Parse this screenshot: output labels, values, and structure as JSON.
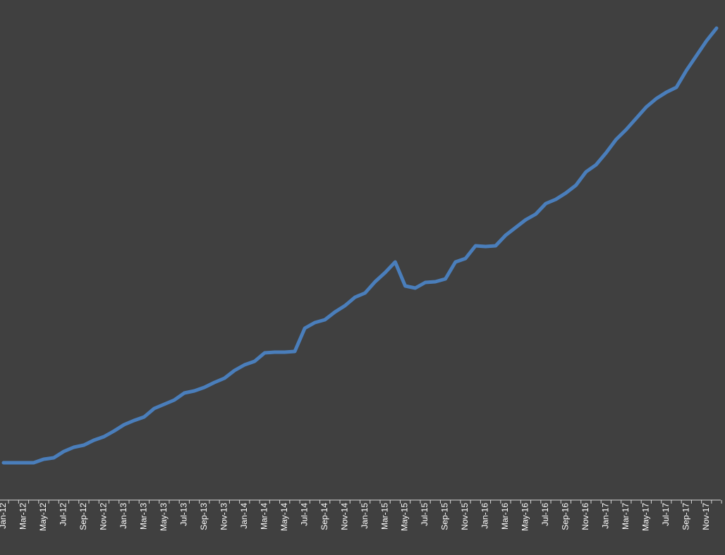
{
  "chart_data": {
    "type": "line",
    "categories": [
      "Jan-12",
      null,
      "Mar-12",
      null,
      "May-12",
      null,
      "Jul-12",
      null,
      "Sep-12",
      null,
      "Nov-12",
      null,
      "Jan-13",
      null,
      "Mar-13",
      null,
      "May-13",
      null,
      "Jul-13",
      null,
      "Sep-13",
      null,
      "Nov-13",
      null,
      "Jan-14",
      null,
      "Mar-14",
      null,
      "May-14",
      null,
      "Jul-14",
      null,
      "Sep-14",
      null,
      "Nov-14",
      null,
      "Jan-15",
      null,
      "Mar-15",
      null,
      "May-15",
      null,
      "Jul-15",
      null,
      "Sep-15",
      null,
      "Nov-15",
      null,
      "Jan-16",
      null,
      "Mar-16",
      null,
      "May-16",
      null,
      "Jul-16",
      null,
      "Sep-16",
      null,
      "Nov-16",
      null,
      "Jan-17",
      null,
      "Mar-17",
      null,
      "May-17",
      null,
      "Jul-17",
      null,
      "Sep-17",
      null,
      "Nov-17",
      null
    ],
    "values": [
      43,
      43,
      43,
      43,
      48,
      50,
      59,
      65,
      68,
      75,
      80,
      88,
      97,
      103,
      108,
      120,
      126,
      132,
      142,
      145,
      150,
      157,
      163,
      174,
      182,
      187,
      199,
      200,
      200,
      201,
      234,
      242,
      246,
      257,
      266,
      278,
      284,
      300,
      313,
      328,
      294,
      291,
      299,
      300,
      304,
      328,
      333,
      351,
      350,
      351,
      366,
      377,
      388,
      396,
      411,
      417,
      426,
      437,
      456,
      466,
      483,
      502,
      516,
      532,
      548,
      560,
      569,
      576,
      600,
      621,
      642,
      660
    ],
    "color": "#4a7ebb",
    "ylim": [
      -10,
      700
    ]
  }
}
